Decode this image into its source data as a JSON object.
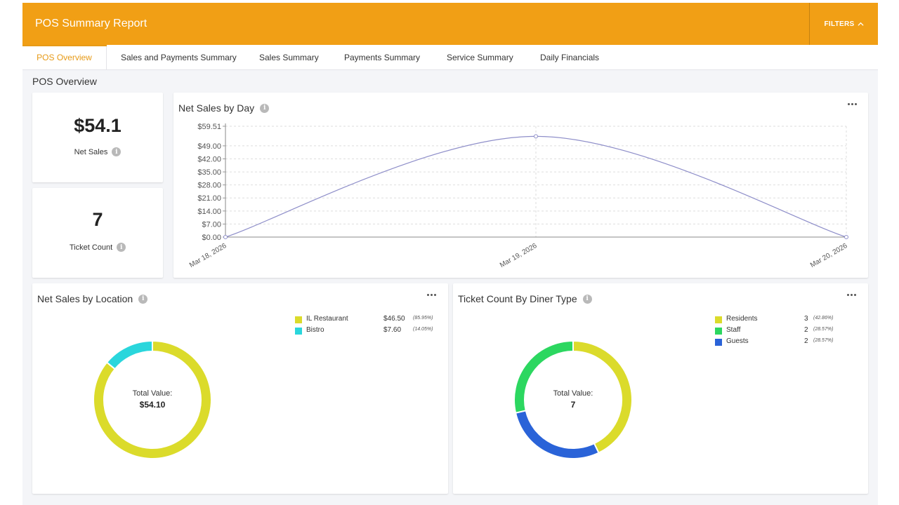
{
  "header": {
    "title": "POS Summary Report",
    "filters_label": "FILTERS",
    "filters_icon": "chevron-up-icon"
  },
  "tabs": [
    {
      "label": "POS Overview",
      "active": true
    },
    {
      "label": "Sales and Payments Summary"
    },
    {
      "label": "Sales Summary"
    },
    {
      "label": "Payments Summary"
    },
    {
      "label": "Service Summary"
    },
    {
      "label": "Daily Financials"
    }
  ],
  "section_title": "POS Overview",
  "kpis": {
    "net_sales": {
      "value": "$54.1",
      "label": "Net Sales"
    },
    "ticket_count": {
      "value": "7",
      "label": "Ticket Count"
    }
  },
  "colors": {
    "accent": "#f19f15",
    "line": "#8e8ec9",
    "yellow": "#dbdb2b",
    "cyan": "#2ad6dc",
    "green": "#2cd760",
    "blue": "#2a63d8"
  },
  "net_sales_by_day": {
    "title": "Net Sales by Day",
    "chart_data": {
      "type": "line",
      "x": [
        "Mar 18, 2026",
        "Mar 19, 2026",
        "Mar 20, 2026"
      ],
      "values": [
        0,
        54.1,
        0
      ],
      "yticks": [
        "$59.51",
        "$49.00",
        "$42.00",
        "$35.00",
        "$28.00",
        "$21.00",
        "$14.00",
        "$7.00",
        "$0.00"
      ],
      "ylim": [
        0,
        59.51
      ],
      "grid": true
    }
  },
  "net_sales_by_location": {
    "title": "Net Sales by Location",
    "center_label": "Total Value:",
    "center_value": "$54.10",
    "chart_data": {
      "type": "pie",
      "categories": [
        "IL Restaurant",
        "Bistro"
      ],
      "values": [
        46.5,
        7.6
      ],
      "value_labels": [
        "$46.50",
        "$7.60"
      ],
      "percent_labels": [
        "(85.95%)",
        "(14.05%)"
      ]
    }
  },
  "ticket_count_by_diner_type": {
    "title": "Ticket Count By Diner Type",
    "center_label": "Total Value:",
    "center_value": "7",
    "chart_data": {
      "type": "pie",
      "categories": [
        "Residents",
        "Staff",
        "Guests"
      ],
      "values": [
        3,
        2,
        2
      ],
      "value_labels": [
        "3",
        "2",
        "2"
      ],
      "percent_labels": [
        "(42.86%)",
        "(28.57%)",
        "(28.57%)"
      ]
    }
  }
}
